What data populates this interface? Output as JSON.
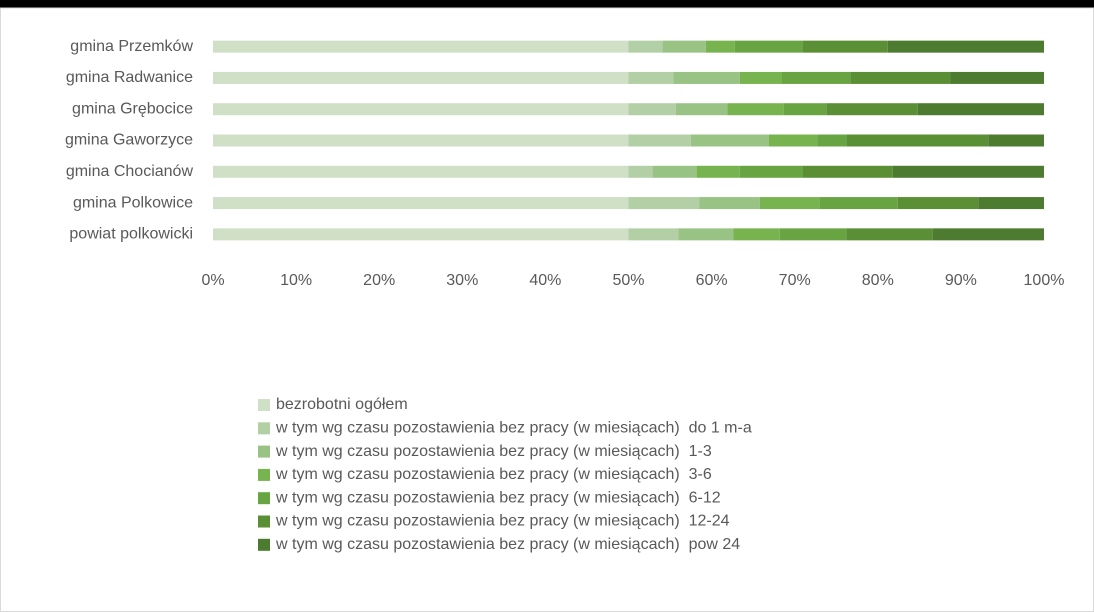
{
  "chart_data": {
    "type": "stacked-barh",
    "categories": [
      "gmina Przemków",
      "gmina Radwanice",
      "gmina Grębocice",
      "gmina Gaworzyce",
      "gmina Chocianów",
      "gmina Polkowice",
      "powiat polkowicki"
    ],
    "series": [
      {
        "name": "bezrobotni ogółem",
        "color": "#cfe0c7",
        "values": [
          50,
          50,
          50,
          50,
          50,
          50,
          50
        ]
      },
      {
        "name": "w tym wg czasu pozostawienia bez pracy (w miesiącach)  do 1 m-a",
        "color": "#b3cfa6",
        "values": [
          4.1,
          5.4,
          5.7,
          7.5,
          2.9,
          8.5,
          6.0
        ]
      },
      {
        "name": "w tym wg czasu pozostawienia bez pracy (w miesiącach)  1-3",
        "color": "#99c285",
        "values": [
          5.2,
          8.0,
          6.2,
          9.4,
          5.3,
          7.3,
          6.6
        ]
      },
      {
        "name": "w tym wg czasu pozostawienia bez pracy (w miesiącach)  3-6",
        "color": "#77b34f",
        "values": [
          3.5,
          5.0,
          6.8,
          5.8,
          5.2,
          7.2,
          5.6
        ]
      },
      {
        "name": "w tym wg czasu pozostawienia bez pracy (w miesiącach)  6-12",
        "color": "#69a442",
        "values": [
          8.2,
          8.3,
          5.1,
          3.5,
          7.6,
          9.4,
          8.0
        ]
      },
      {
        "name": "w tym wg czasu pozostawienia bez pracy (w miesiącach)  12-24",
        "color": "#5a8f36",
        "values": [
          10.2,
          12.0,
          11.0,
          17.1,
          10.8,
          9.7,
          10.4
        ]
      },
      {
        "name": "w tym wg czasu pozostawienia bez pracy (w miesiącach)  pow 24",
        "color": "#4d7b2f",
        "values": [
          18.8,
          11.3,
          15.2,
          6.7,
          18.2,
          7.9,
          13.4
        ]
      }
    ],
    "xlim": [
      0,
      100
    ],
    "xticks": [
      {
        "value": 0,
        "label": "0%"
      },
      {
        "value": 10,
        "label": "10%"
      },
      {
        "value": 20,
        "label": "20%"
      },
      {
        "value": 30,
        "label": "30%"
      },
      {
        "value": 40,
        "label": "40%"
      },
      {
        "value": 50,
        "label": "50%"
      },
      {
        "value": 60,
        "label": "60%"
      },
      {
        "value": 70,
        "label": "70%"
      },
      {
        "value": 80,
        "label": "80%"
      },
      {
        "value": 90,
        "label": "90%"
      },
      {
        "value": 100,
        "label": "100%"
      }
    ],
    "legend": "bottom"
  }
}
